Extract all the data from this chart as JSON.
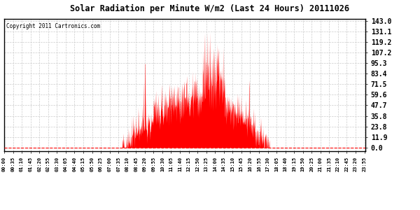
{
  "title": "Solar Radiation per Minute W/m2 (Last 24 Hours) 20111026",
  "copyright_text": "Copyright 2011 Cartronics.com",
  "bar_color": "#ff0000",
  "background_color": "#ffffff",
  "grid_color": "#bbbbbb",
  "yticks": [
    0.0,
    11.9,
    23.8,
    35.8,
    47.7,
    59.6,
    71.5,
    83.4,
    95.3,
    107.2,
    119.2,
    131.1,
    143.0
  ],
  "ymax": 143.0,
  "ymin": 0.0,
  "num_minutes": 1440,
  "sunrise_minute": 470,
  "sunset_minute": 1060,
  "solar_noon": 765
}
